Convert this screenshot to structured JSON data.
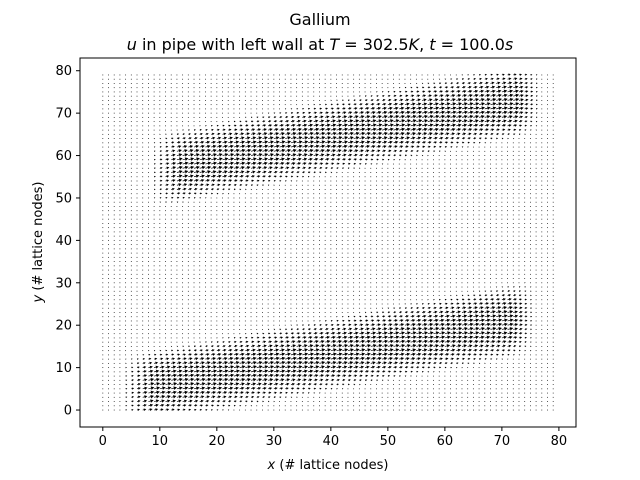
{
  "chart_data": {
    "type": "quiver",
    "title": "Gallium",
    "subtitle": {
      "var": "u",
      "text1": " in pipe with left wall at ",
      "tvar": "T",
      "tval": " = 302.5",
      "tunit": "K",
      "sep": ", ",
      "timevar": "t",
      "timeval": " = 100.0",
      "timeunit": "s"
    },
    "xlabel": {
      "var": "x",
      "rest": " (# lattice nodes)"
    },
    "ylabel": {
      "var": "y",
      "rest": " (# lattice nodes)"
    },
    "xlim": [
      -4,
      83
    ],
    "ylim": [
      -4,
      83
    ],
    "xticks": [
      0,
      10,
      20,
      30,
      40,
      50,
      60,
      70,
      80
    ],
    "yticks": [
      0,
      10,
      20,
      30,
      40,
      50,
      60,
      70,
      80
    ],
    "grid": false,
    "lattice": {
      "nx": 80,
      "ny": 80
    },
    "flow_bands": [
      {
        "x": [
          3,
          76
        ],
        "y_center_start": 4,
        "y_center_end": 22,
        "half_width": 9,
        "peak_speed": 1.0
      },
      {
        "x": [
          8,
          77
        ],
        "y_center_start": 56,
        "y_center_end": 74,
        "half_width": 9,
        "peak_speed": 1.0
      }
    ]
  }
}
